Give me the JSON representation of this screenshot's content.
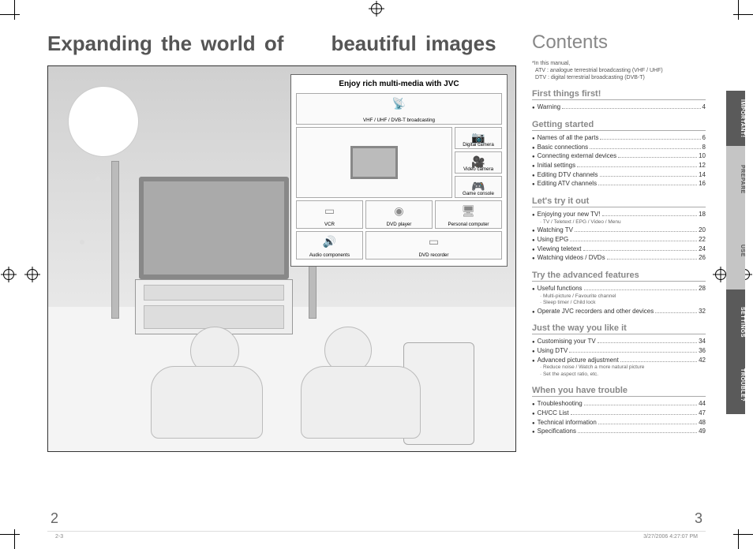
{
  "title_a": "Expanding the world of",
  "title_b": "beautiful images",
  "callout": {
    "title": "Enjoy rich multi-media with JVC",
    "devices": [
      "VHF / UHF / DVB-T broadcasting",
      "Digital camera",
      "Video camera",
      "Game console",
      "VCR",
      "DVD player",
      "Personal computer",
      "Audio components",
      "DVD recorder"
    ]
  },
  "contents_title": "Contents",
  "manual_note": {
    "l1": "*In this manual,",
    "l2": "ATV : analogue terrestrial broadcasting (VHF / UHF)",
    "l3": "DTV : digital terrestrial broadcasting (DVB-T)"
  },
  "toc": {
    "s1": {
      "h": "First things first!",
      "items": [
        {
          "t": "Warning",
          "p": "4"
        }
      ]
    },
    "s2": {
      "h": "Getting started",
      "items": [
        {
          "t": "Names of all the parts",
          "p": "6"
        },
        {
          "t": "Basic connections",
          "p": "8"
        },
        {
          "t": "Connecting external devices",
          "p": "10"
        },
        {
          "t": "Initial settings",
          "p": "12"
        },
        {
          "t": "Editing DTV channels",
          "p": "14"
        },
        {
          "t": "Editing ATV channels",
          "p": "16"
        }
      ]
    },
    "s3": {
      "h": "Let's try it out",
      "items": [
        {
          "t": "Enjoying your new TV!",
          "p": "18",
          "sub": "· TV / Teletext / EPG / Video / Menu"
        },
        {
          "t": "Watching TV",
          "p": "20"
        },
        {
          "t": "Using EPG",
          "p": "22"
        },
        {
          "t": "Viewing teletext",
          "p": "24"
        },
        {
          "t": "Watching videos / DVDs",
          "p": "26"
        }
      ]
    },
    "s3b": {
      "h": "Try the advanced features",
      "items": [
        {
          "t": "Useful functions",
          "p": "28",
          "sub": "· Multi-picture / Favourite channel\n· Sleep timer / Child lock"
        },
        {
          "t": "Operate JVC recorders and other devices",
          "p": "32"
        }
      ]
    },
    "s4": {
      "h": "Just the way you like it",
      "items": [
        {
          "t": "Customising your TV",
          "p": "34"
        },
        {
          "t": "Using DTV",
          "p": "36"
        },
        {
          "t": "Advanced picture adjustment",
          "p": "42",
          "sub": "· Reduce noise / Watch a more natural picture\n· Set the aspect ratio, etc."
        }
      ]
    },
    "s5": {
      "h": "When you have trouble",
      "items": [
        {
          "t": "Troubleshooting",
          "p": "44"
        },
        {
          "t": "CH/CC List",
          "p": "47"
        },
        {
          "t": "Technical information",
          "p": "48"
        },
        {
          "t": "Specifications",
          "p": "49"
        }
      ]
    }
  },
  "tabs": [
    "IMPORTANT!",
    "PREPARE",
    "USE",
    "SETTINGS",
    "TROUBLE?"
  ],
  "tab_heights": [
    70,
    84,
    98,
    84,
    74
  ],
  "tab_shades": [
    "dark",
    "light",
    "light",
    "dark",
    "dark"
  ],
  "page_left": "2",
  "page_right": "3",
  "footer_left": "2-3",
  "footer_right": "3/27/2006   4:27:07 PM",
  "colors": {
    "heading": "#888888",
    "text": "#333333",
    "rule": "#aaaaaa",
    "tab_dark_bg": "#5a5a5a",
    "tab_light_bg": "#c5c5c5"
  }
}
